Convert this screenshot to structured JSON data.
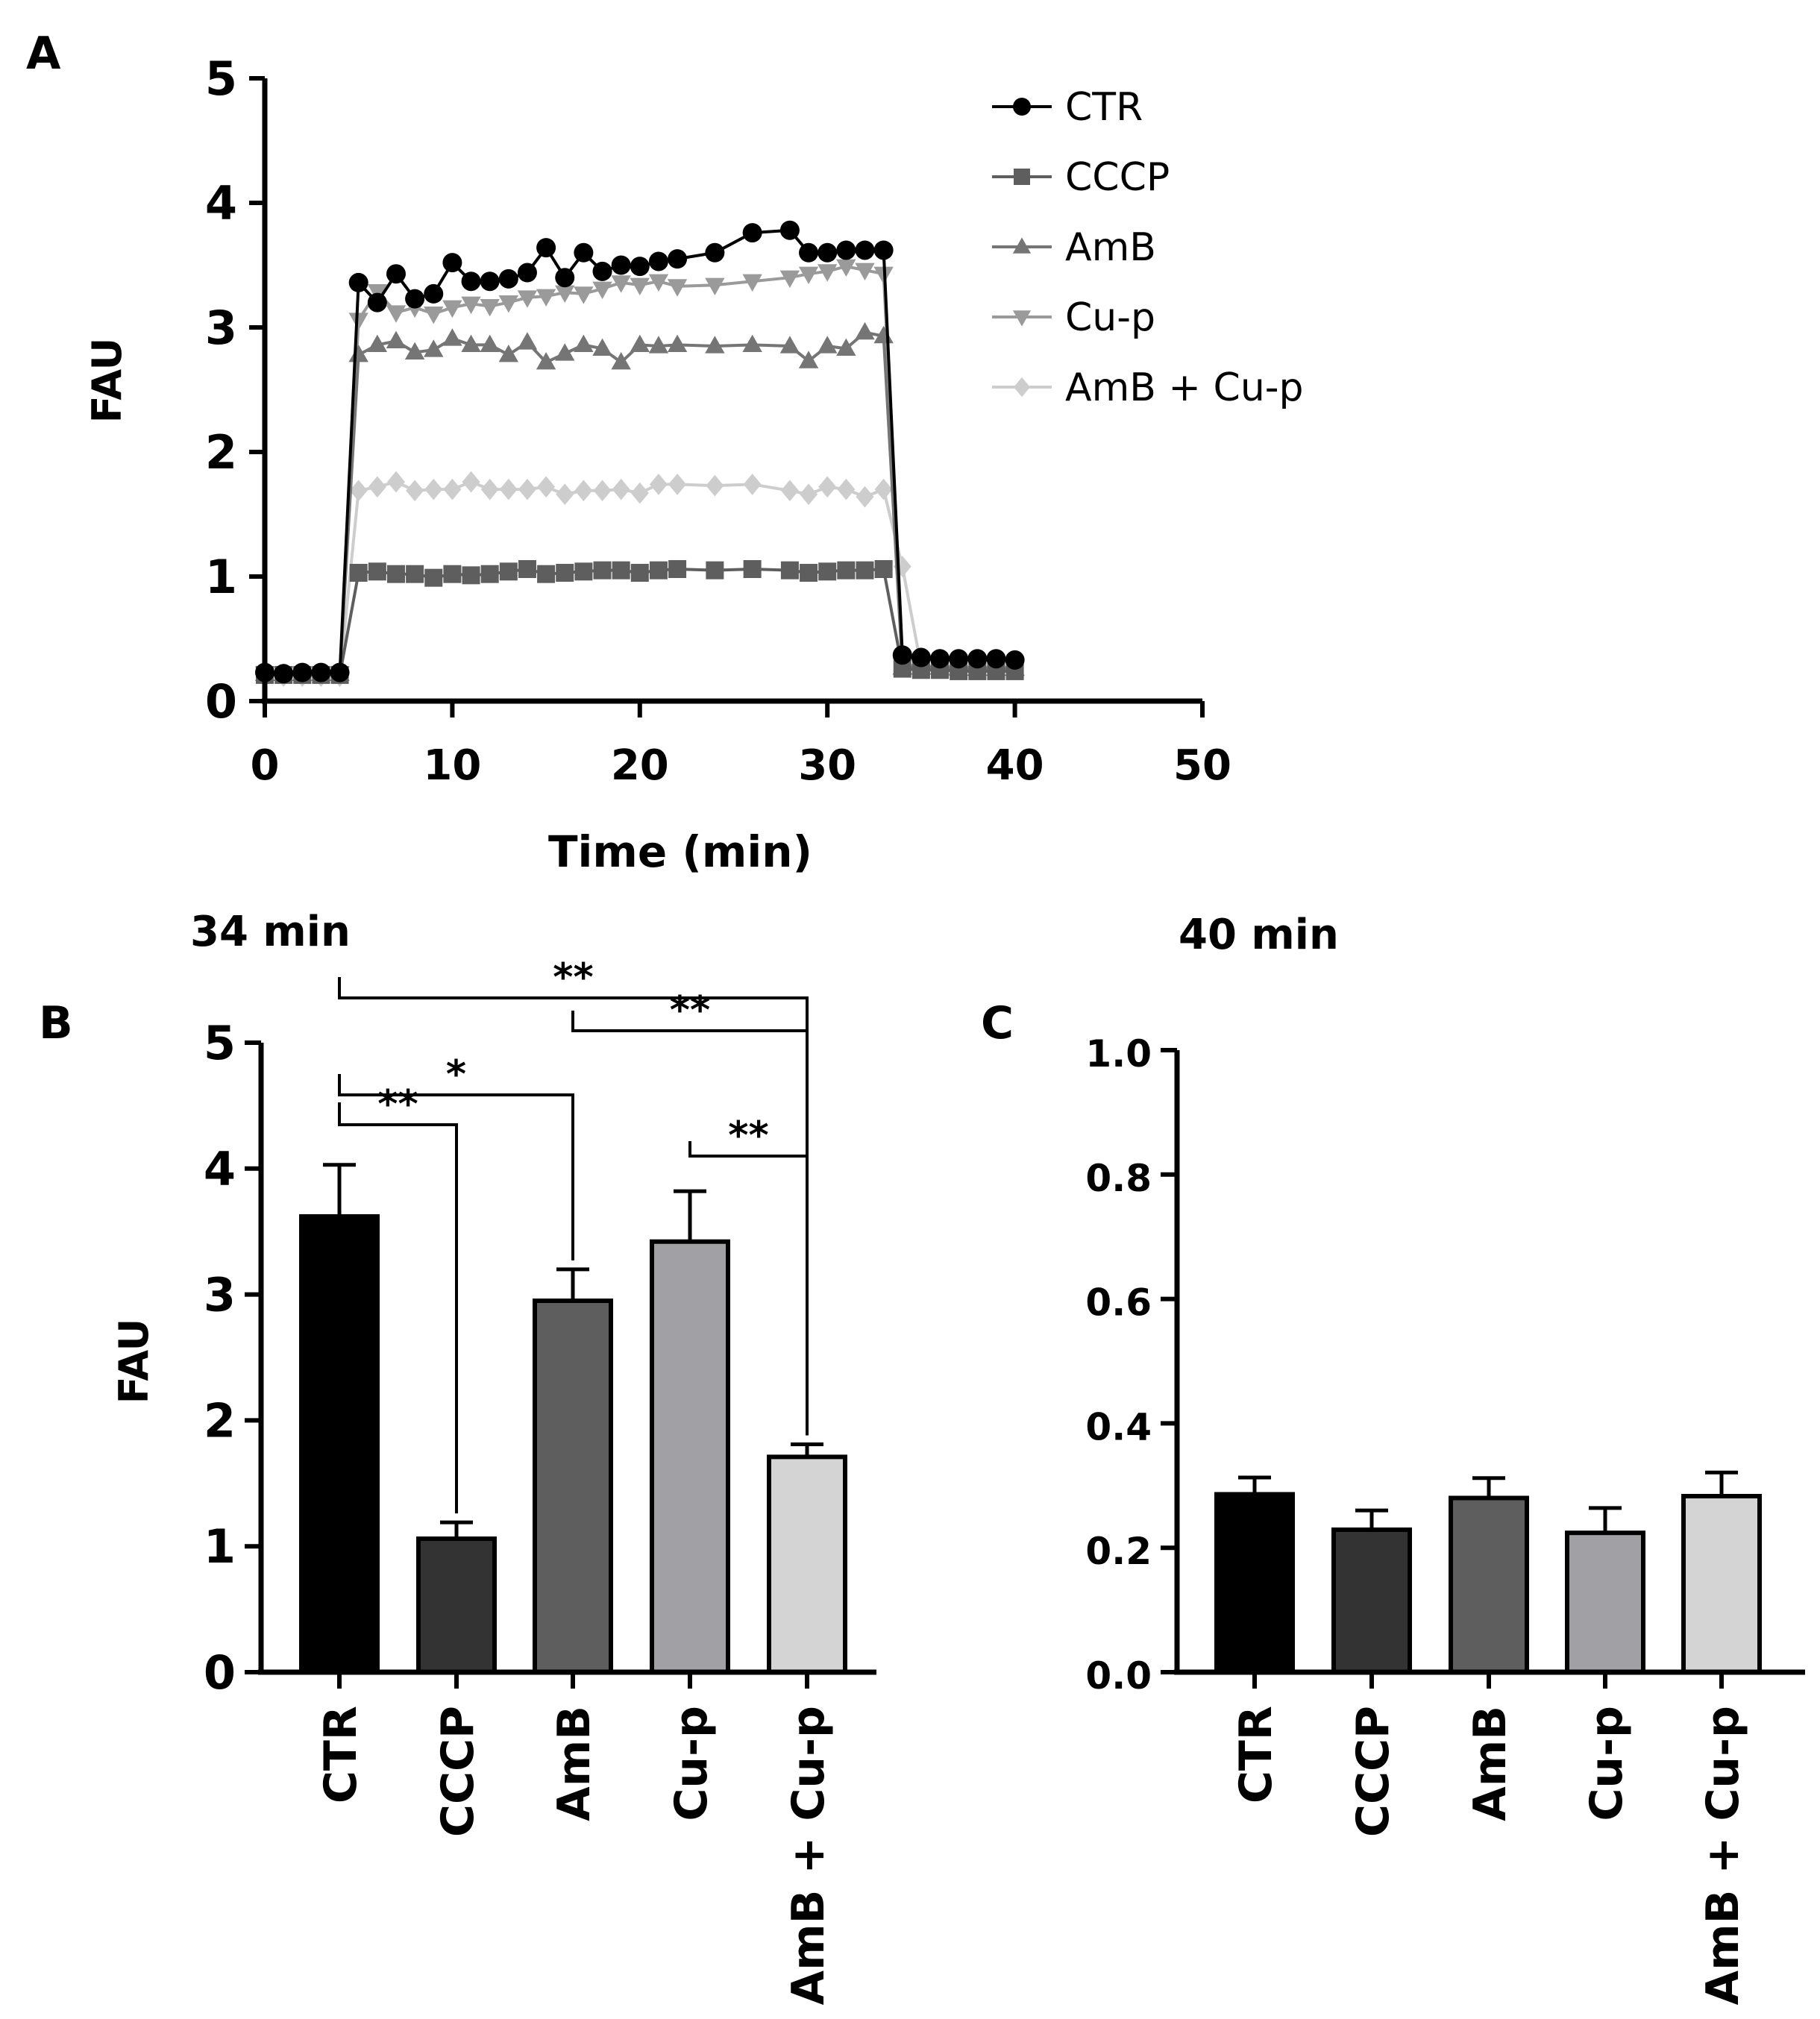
{
  "figure": {
    "colors": {
      "ctr": "#000000",
      "cccp": "#333333",
      "amb": "#5e5e5e",
      "cup": "#a0a0a5",
      "ambcup": "#d4d4d4",
      "line_amb": "#757575",
      "line_cup": "#9a9a9a",
      "line_ambcup": "#cdcdcd"
    }
  },
  "chart_data": [
    {
      "panel": "A",
      "type": "line",
      "xlabel": "Time (min)",
      "ylabel": "FAU",
      "xlim": [
        0,
        50
      ],
      "ylim": [
        0,
        5
      ],
      "xticks": [
        "0",
        "10",
        "20",
        "30",
        "40",
        "50"
      ],
      "yticks": [
        "0",
        "1",
        "2",
        "3",
        "4",
        "5"
      ],
      "legend_position": "top-right",
      "series": [
        {
          "name": "CTR",
          "marker": "circle",
          "color": "#000000",
          "x": [
            0,
            1,
            2,
            3,
            4,
            5,
            6,
            7,
            8,
            9,
            10,
            11,
            12,
            13,
            14,
            15,
            16,
            17,
            18,
            19,
            20,
            21,
            22,
            24,
            26,
            28,
            29,
            30,
            31,
            32,
            33,
            34,
            35,
            36,
            37,
            38,
            39,
            40
          ],
          "y": [
            0.23,
            0.22,
            0.23,
            0.23,
            0.23,
            3.36,
            3.2,
            3.43,
            3.23,
            3.27,
            3.52,
            3.37,
            3.37,
            3.39,
            3.44,
            3.64,
            3.4,
            3.6,
            3.45,
            3.5,
            3.49,
            3.53,
            3.55,
            3.6,
            3.76,
            3.78,
            3.6,
            3.6,
            3.62,
            3.62,
            3.62,
            0.37,
            0.35,
            0.34,
            0.34,
            0.34,
            0.34,
            0.33
          ]
        },
        {
          "name": "CCCP",
          "marker": "square",
          "color": "#5e5e5e",
          "x": [
            0,
            1,
            2,
            3,
            4,
            5,
            6,
            7,
            8,
            9,
            10,
            11,
            12,
            13,
            14,
            15,
            16,
            17,
            18,
            19,
            20,
            21,
            22,
            24,
            26,
            28,
            29,
            30,
            31,
            32,
            33,
            34,
            35,
            36,
            37,
            38,
            39,
            40
          ],
          "y": [
            0.21,
            0.21,
            0.21,
            0.21,
            0.21,
            1.03,
            1.04,
            1.02,
            1.02,
            0.99,
            1.02,
            1.01,
            1.02,
            1.04,
            1.06,
            1.02,
            1.03,
            1.04,
            1.05,
            1.05,
            1.03,
            1.05,
            1.06,
            1.05,
            1.06,
            1.05,
            1.03,
            1.04,
            1.05,
            1.05,
            1.06,
            0.26,
            0.25,
            0.25,
            0.24,
            0.24,
            0.24,
            0.24
          ]
        },
        {
          "name": "AmB",
          "marker": "triangle-up",
          "color": "#757575",
          "x": [
            0,
            1,
            2,
            3,
            4,
            5,
            6,
            7,
            8,
            9,
            10,
            11,
            12,
            13,
            14,
            15,
            16,
            17,
            18,
            19,
            20,
            21,
            22,
            24,
            26,
            28,
            29,
            30,
            31,
            32,
            33,
            34,
            35,
            36,
            37,
            38,
            39,
            40
          ],
          "y": [
            0.22,
            0.22,
            0.22,
            0.22,
            0.22,
            2.78,
            2.86,
            2.89,
            2.8,
            2.82,
            2.91,
            2.86,
            2.86,
            2.78,
            2.88,
            2.72,
            2.79,
            2.86,
            2.83,
            2.72,
            2.86,
            2.85,
            2.86,
            2.85,
            2.86,
            2.85,
            2.73,
            2.85,
            2.83,
            2.96,
            2.93,
            0.27,
            0.27,
            0.27,
            0.26,
            0.26,
            0.26,
            0.26
          ]
        },
        {
          "name": "Cu-p",
          "marker": "triangle-down",
          "color": "#9a9a9a",
          "x": [
            0,
            1,
            2,
            3,
            4,
            5,
            6,
            7,
            8,
            9,
            10,
            11,
            12,
            13,
            14,
            15,
            16,
            17,
            18,
            19,
            20,
            21,
            22,
            24,
            26,
            28,
            29,
            30,
            31,
            32,
            33,
            34,
            35,
            36,
            37,
            38,
            39,
            40
          ],
          "y": [
            0.22,
            0.22,
            0.22,
            0.22,
            0.22,
            3.06,
            3.29,
            3.12,
            3.16,
            3.11,
            3.16,
            3.19,
            3.17,
            3.2,
            3.24,
            3.25,
            3.28,
            3.27,
            3.31,
            3.36,
            3.34,
            3.37,
            3.33,
            3.34,
            3.37,
            3.4,
            3.43,
            3.45,
            3.49,
            3.46,
            3.43,
            0.29,
            0.28,
            0.28,
            0.27,
            0.27,
            0.27,
            0.27
          ]
        },
        {
          "name": "AmB + Cu-p",
          "marker": "diamond",
          "color": "#cdcdcd",
          "x": [
            0,
            1,
            2,
            3,
            4,
            5,
            6,
            7,
            8,
            9,
            10,
            11,
            12,
            13,
            14,
            15,
            16,
            17,
            18,
            19,
            20,
            21,
            22,
            24,
            26,
            28,
            29,
            30,
            31,
            32,
            33,
            34,
            35,
            36,
            37,
            38,
            39,
            40
          ],
          "y": [
            0.2,
            0.2,
            0.2,
            0.2,
            0.2,
            1.69,
            1.72,
            1.76,
            1.69,
            1.7,
            1.7,
            1.76,
            1.7,
            1.7,
            1.7,
            1.72,
            1.66,
            1.69,
            1.69,
            1.7,
            1.67,
            1.74,
            1.74,
            1.73,
            1.74,
            1.69,
            1.66,
            1.72,
            1.7,
            1.64,
            1.7,
            1.08,
            0.28,
            0.28,
            0.28,
            0.27,
            0.27,
            0.27
          ]
        }
      ]
    },
    {
      "panel": "B",
      "type": "bar",
      "title": "34 min",
      "ylabel": "FAU",
      "ylim": [
        0,
        5
      ],
      "yticks": [
        "0",
        "1",
        "2",
        "3",
        "4",
        "5"
      ],
      "categories": [
        "CTR",
        "CCCP",
        "AmB",
        "Cu-p",
        "AmB + Cu-p"
      ],
      "values": [
        3.62,
        1.06,
        2.95,
        3.42,
        1.71
      ],
      "errors": [
        0.41,
        0.13,
        0.25,
        0.4,
        0.1
      ],
      "significance": [
        {
          "from": "CTR",
          "to": "CCCP",
          "label": "**"
        },
        {
          "from": "CTR",
          "to": "AmB",
          "label": "*"
        },
        {
          "from": "CTR",
          "to": "AmB + Cu-p",
          "label": "**"
        },
        {
          "from": "AmB",
          "to": "AmB + Cu-p",
          "label": "**"
        },
        {
          "from": "Cu-p",
          "to": "AmB + Cu-p",
          "label": "**"
        }
      ]
    },
    {
      "panel": "C",
      "type": "bar",
      "title": "40 min",
      "ylabel": "",
      "ylim": [
        0,
        1.0
      ],
      "yticks": [
        "0.0",
        "0.2",
        "0.4",
        "0.6",
        "0.8",
        "1.0"
      ],
      "categories": [
        "CTR",
        "CCCP",
        "AmB",
        "Cu-p",
        "AmB + Cu-p"
      ],
      "values": [
        0.286,
        0.229,
        0.28,
        0.224,
        0.283
      ],
      "errors": [
        0.027,
        0.031,
        0.032,
        0.04,
        0.038
      ]
    }
  ]
}
